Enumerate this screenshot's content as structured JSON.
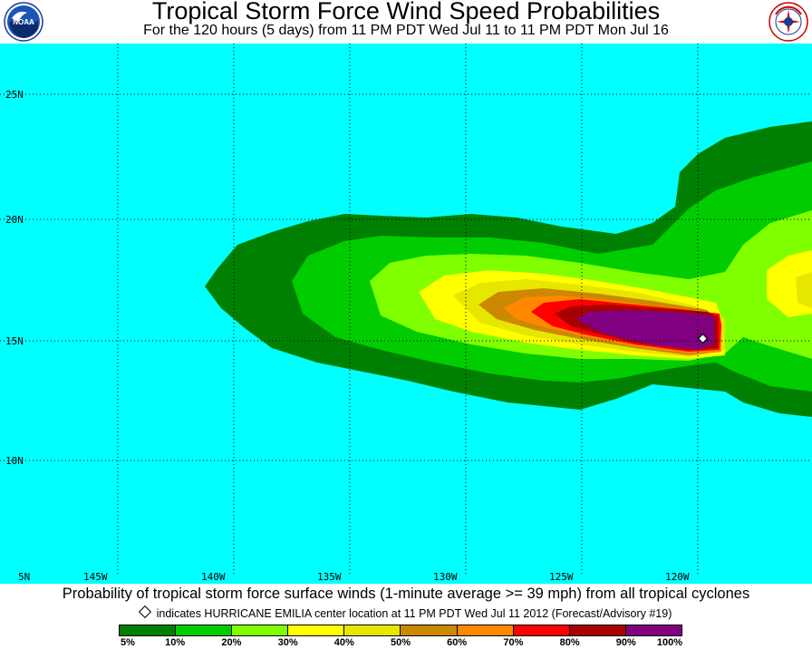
{
  "header": {
    "title": "Tropical Storm Force Wind Speed Probabilities",
    "subtitle": "For the 120 hours (5 days) from 11 PM PDT Wed Jul 11 to 11 PM PDT Mon Jul 16",
    "left_logo": "noaa-logo",
    "right_logo": "national-weather-service-logo"
  },
  "map": {
    "background_color": "#00ffff",
    "land_color": "#7fffd4",
    "lat_labels": [
      "25N",
      "20N",
      "15N",
      "10N",
      "5N"
    ],
    "lon_labels": [
      "145W",
      "140W",
      "135W",
      "130W",
      "125W",
      "120W"
    ],
    "storm_marker": "hurricane-center-diamond"
  },
  "footer": {
    "line1": "Probability of tropical storm force surface winds (1-minute average >= 39 mph) from all tropical cyclones",
    "line2": "indicates HURRICANE EMILIA center location at 11 PM PDT Wed Jul 11 2012 (Forecast/Advisory #19)"
  },
  "legend": {
    "labels": [
      "5%",
      "10%",
      "20%",
      "30%",
      "40%",
      "50%",
      "60%",
      "70%",
      "80%",
      "90%",
      "100%"
    ],
    "colors": [
      "#008000",
      "#00cc00",
      "#7fff00",
      "#ffff00",
      "#e6e600",
      "#cc8800",
      "#ff8800",
      "#ff0000",
      "#a80000",
      "#800080"
    ]
  }
}
